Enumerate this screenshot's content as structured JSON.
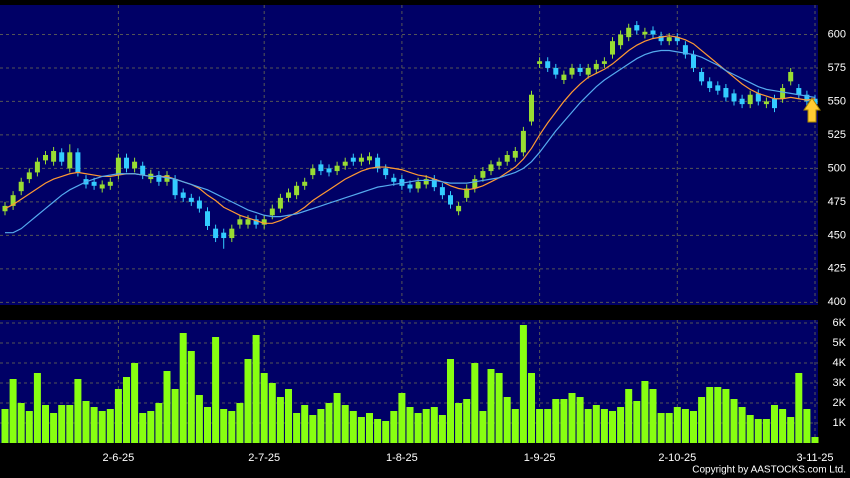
{
  "chart_data": {
    "type": "candlestick",
    "categories": [
      null,
      null,
      null,
      null,
      null,
      null,
      null,
      null,
      null,
      null,
      null,
      null,
      null,
      null,
      "2-6-25",
      null,
      null,
      null,
      null,
      null,
      null,
      null,
      null,
      null,
      null,
      null,
      null,
      null,
      null,
      null,
      null,
      null,
      "2-7-25",
      null,
      null,
      null,
      null,
      null,
      null,
      null,
      null,
      null,
      null,
      null,
      null,
      null,
      null,
      null,
      null,
      "1-8-25",
      null,
      null,
      null,
      null,
      null,
      null,
      null,
      null,
      null,
      null,
      null,
      null,
      null,
      null,
      null,
      null,
      "1-9-25",
      null,
      null,
      null,
      null,
      null,
      null,
      null,
      null,
      null,
      null,
      null,
      null,
      null,
      null,
      null,
      null,
      "2-10-25",
      null,
      null,
      null,
      null,
      null,
      null,
      null,
      null,
      null,
      null,
      null,
      null,
      null,
      null,
      null,
      null,
      "3-11-25"
    ],
    "open": [
      468,
      472,
      483,
      492,
      497,
      506,
      505,
      512,
      500,
      512,
      492,
      490,
      485,
      487,
      495,
      508,
      500,
      502,
      492,
      495,
      490,
      492,
      482,
      478,
      476,
      468,
      455,
      452,
      448,
      458,
      458,
      462,
      458,
      465,
      470,
      478,
      480,
      487,
      495,
      503,
      500,
      498,
      502,
      508,
      505,
      506,
      508,
      500,
      493,
      492,
      488,
      485,
      488,
      492,
      486,
      480,
      468,
      478,
      485,
      493,
      498,
      502,
      505,
      508,
      512,
      535,
      578,
      580,
      575,
      566,
      570,
      575,
      570,
      574,
      578,
      585,
      592,
      598,
      607,
      600,
      603,
      599,
      595,
      598,
      592,
      585,
      572,
      565,
      562,
      560,
      556,
      552,
      548,
      556,
      548,
      552,
      552,
      565,
      560,
      555,
      552
    ],
    "high": [
      475,
      483,
      493,
      500,
      508,
      513,
      516,
      515,
      518,
      515,
      495,
      493,
      491,
      493,
      511,
      511,
      508,
      505,
      499,
      498,
      498,
      495,
      485,
      481,
      479,
      471,
      458,
      455,
      458,
      465,
      465,
      465,
      465,
      473,
      481,
      485,
      490,
      493,
      503,
      506,
      503,
      505,
      508,
      511,
      511,
      512,
      511,
      503,
      496,
      495,
      491,
      493,
      495,
      495,
      489,
      483,
      475,
      488,
      495,
      501,
      506,
      508,
      513,
      516,
      531,
      558,
      583,
      583,
      578,
      573,
      578,
      578,
      578,
      581,
      583,
      598,
      603,
      608,
      610,
      605,
      606,
      602,
      601,
      601,
      595,
      588,
      575,
      568,
      565,
      563,
      559,
      555,
      558,
      559,
      553,
      555,
      563,
      575,
      563,
      558,
      555
    ],
    "low": [
      465,
      469,
      480,
      489,
      494,
      503,
      502,
      502,
      497,
      494,
      485,
      484,
      482,
      484,
      492,
      497,
      497,
      492,
      489,
      487,
      487,
      477,
      475,
      472,
      467,
      454,
      445,
      440,
      445,
      455,
      455,
      455,
      455,
      462,
      467,
      475,
      477,
      484,
      492,
      495,
      494,
      495,
      499,
      502,
      502,
      503,
      497,
      492,
      487,
      484,
      482,
      482,
      485,
      483,
      477,
      470,
      465,
      475,
      482,
      490,
      495,
      499,
      502,
      505,
      509,
      532,
      575,
      572,
      567,
      563,
      567,
      569,
      567,
      571,
      575,
      582,
      589,
      595,
      600,
      597,
      597,
      592,
      592,
      592,
      582,
      572,
      562,
      557,
      555,
      550,
      547,
      545,
      545,
      547,
      545,
      542,
      549,
      562,
      552,
      547,
      545
    ],
    "close": [
      472,
      480,
      490,
      497,
      505,
      510,
      513,
      505,
      512,
      497,
      488,
      487,
      488,
      490,
      508,
      500,
      505,
      495,
      496,
      490,
      495,
      480,
      478,
      475,
      470,
      457,
      448,
      448,
      455,
      462,
      462,
      458,
      462,
      470,
      478,
      482,
      487,
      490,
      500,
      498,
      497,
      502,
      505,
      505,
      508,
      509,
      500,
      495,
      490,
      487,
      485,
      490,
      492,
      486,
      480,
      473,
      472,
      485,
      492,
      498,
      503,
      505,
      510,
      513,
      528,
      555,
      580,
      575,
      570,
      570,
      575,
      572,
      575,
      578,
      580,
      595,
      600,
      605,
      603,
      602,
      600,
      595,
      598,
      595,
      585,
      575,
      565,
      560,
      558,
      553,
      550,
      548,
      555,
      550,
      550,
      545,
      560,
      572,
      555,
      550,
      548
    ],
    "up_color": "#99dd33",
    "down_color": "#33ccff",
    "moving_averages": [
      {
        "color": "#ff9933",
        "values": [
          470,
          473,
          477,
          481,
          485,
          489,
          492,
          494,
          496,
          497,
          496,
          495,
          494,
          494,
          495,
          496,
          496,
          495,
          494,
          494,
          494,
          492,
          490,
          488,
          485,
          480,
          476,
          471,
          468,
          465,
          463,
          461,
          459,
          459,
          461,
          464,
          467,
          471,
          476,
          480,
          484,
          488,
          492,
          495,
          498,
          500,
          501,
          501,
          500,
          499,
          497,
          495,
          494,
          492,
          490,
          487,
          485,
          484,
          485,
          487,
          490,
          493,
          497,
          501,
          507,
          515,
          525,
          534,
          542,
          550,
          557,
          563,
          568,
          571,
          574,
          578,
          583,
          588,
          592,
          595,
          597,
          598,
          599,
          598,
          596,
          593,
          588,
          583,
          578,
          573,
          568,
          563,
          559,
          556,
          554,
          552,
          552,
          553,
          552,
          551,
          552
        ]
      },
      {
        "color": "#55aaee",
        "values": [
          452,
          452,
          455,
          460,
          465,
          470,
          475,
          480,
          484,
          487,
          490,
          492,
          494,
          495,
          496,
          496,
          496,
          495,
          494,
          494,
          493,
          492,
          490,
          488,
          486,
          484,
          481,
          478,
          475,
          472,
          469,
          467,
          465,
          464,
          464,
          465,
          466,
          468,
          470,
          472,
          474,
          476,
          478,
          480,
          482,
          484,
          486,
          487,
          488,
          489,
          490,
          491,
          491,
          491,
          490,
          489,
          489,
          489,
          490,
          491,
          492,
          493,
          495,
          497,
          500,
          505,
          512,
          520,
          528,
          535,
          542,
          549,
          555,
          561,
          566,
          570,
          574,
          578,
          582,
          585,
          587,
          588,
          588,
          587,
          586,
          585,
          583,
          580,
          577,
          573,
          570,
          567,
          564,
          561,
          559,
          558,
          557,
          556,
          555,
          554,
          553
        ]
      }
    ],
    "ylim": [
      398,
      622
    ],
    "yticks": [
      400,
      425,
      450,
      475,
      500,
      525,
      550,
      575,
      600
    ],
    "grid": true,
    "volume": {
      "color": "#88ff11",
      "ylim": [
        0,
        6150
      ],
      "yticks": [
        {
          "value": 1000,
          "label": "1K"
        },
        {
          "value": 2000,
          "label": "2K"
        },
        {
          "value": 3000,
          "label": "3K"
        },
        {
          "value": 4000,
          "label": "4K"
        },
        {
          "value": 5000,
          "label": "5K"
        },
        {
          "value": 6000,
          "label": "6K"
        }
      ],
      "values": [
        1700,
        3200,
        2000,
        1600,
        3500,
        1900,
        1500,
        1900,
        1900,
        3200,
        2100,
        1800,
        1600,
        1700,
        2700,
        3300,
        4000,
        1500,
        1600,
        2000,
        3600,
        2700,
        5500,
        4600,
        2400,
        1800,
        5300,
        1700,
        1600,
        2000,
        4200,
        5400,
        3500,
        3000,
        2300,
        2700,
        1500,
        1900,
        1400,
        1700,
        2000,
        2500,
        1900,
        1600,
        1300,
        1500,
        1200,
        1100,
        1600,
        2500,
        1800,
        1500,
        1700,
        1800,
        1400,
        4200,
        2000,
        2200,
        4000,
        1600,
        3700,
        3500,
        2300,
        1700,
        5900,
        3500,
        1700,
        1700,
        2200,
        2200,
        2500,
        2300,
        1700,
        1900,
        1700,
        1600,
        1800,
        2700,
        2100,
        3100,
        2700,
        1500,
        1500,
        1800,
        1700,
        1600,
        2300,
        2800,
        2800,
        2700,
        2200,
        1800,
        1400,
        1200,
        1200,
        1900,
        1700,
        1300,
        3500,
        1700,
        300
      ]
    },
    "copyright": "Copyright by AASTOCKS.com Ltd."
  }
}
